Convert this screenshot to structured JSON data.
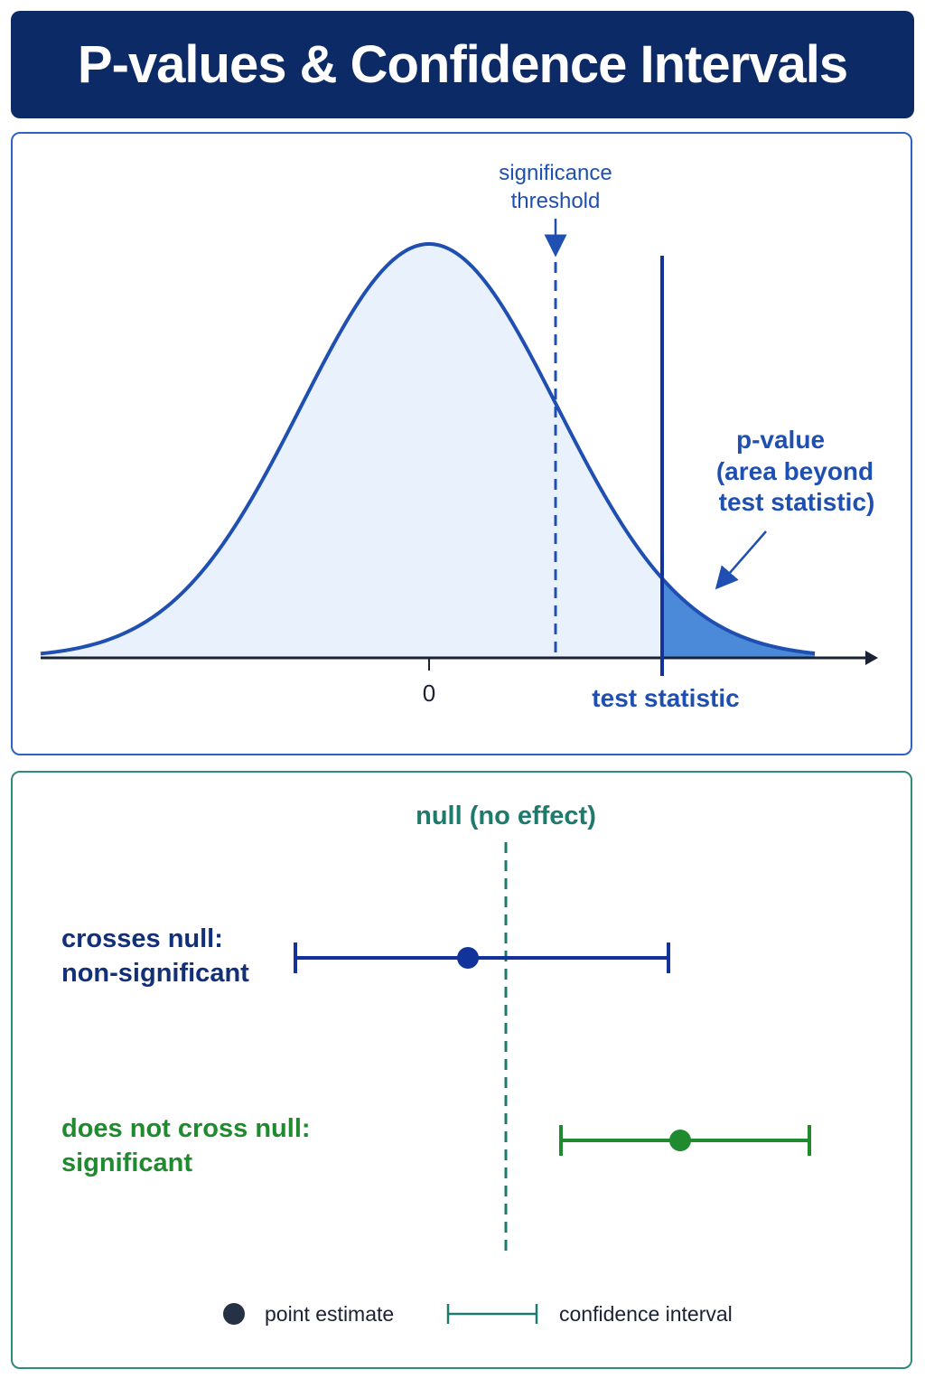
{
  "header": {
    "title": "P-values & Confidence Intervals"
  },
  "distribution_panel": {
    "threshold_label_line1": "significance",
    "threshold_label_line2": "threshold",
    "pvalue_label_line1": "p-value",
    "pvalue_label_line2": "(area beyond",
    "pvalue_label_line3": "test statistic)",
    "zero_label": "0",
    "test_statistic_label": "test statistic"
  },
  "ci_panel": {
    "null_label": "null (no effect)",
    "row1_label_line1": "crosses null:",
    "row1_label_line2": "non-significant",
    "row2_label_line1": "does not cross null:",
    "row2_label_line2": "significant"
  },
  "legend": {
    "point_label": "point estimate",
    "interval_label": "confidence interval"
  },
  "colors": {
    "navy": "#0c2a66",
    "blue": "#1f4fb0",
    "curve_fill": "#e8f1fc",
    "tail_fill": "#4a8ad8",
    "teal": "#1f7a6e",
    "green": "#1f8a2e",
    "dark_dot": "#253245"
  }
}
